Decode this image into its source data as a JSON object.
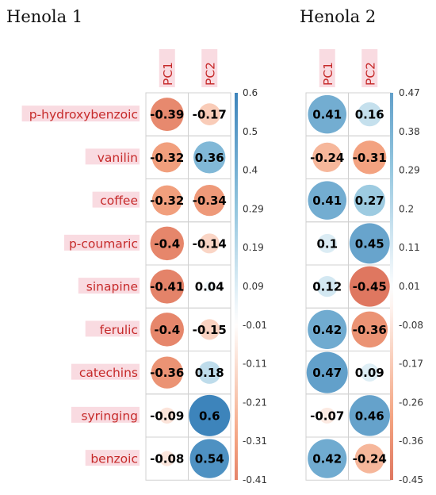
{
  "chart_data": [
    {
      "type": "heatmap",
      "title": "Henola 1",
      "columns": [
        "PC1",
        "PC2"
      ],
      "rows": [
        "p-hydroxybenzoic",
        "vanilin",
        "coffee",
        "p-coumaric",
        "sinapine",
        "ferulic",
        "catechins",
        "syringing",
        "benzoic"
      ],
      "values": [
        [
          -0.39,
          -0.17
        ],
        [
          -0.32,
          0.36
        ],
        [
          -0.32,
          -0.34
        ],
        [
          -0.4,
          -0.14
        ],
        [
          -0.41,
          0.04
        ],
        [
          -0.4,
          -0.15
        ],
        [
          -0.36,
          0.18
        ],
        [
          -0.09,
          0.6
        ],
        [
          -0.08,
          0.54
        ]
      ],
      "value_labels": [
        [
          "-0.39",
          "-0.17"
        ],
        [
          "-0.32",
          "0.36"
        ],
        [
          "-0.32",
          "-0.34"
        ],
        [
          "-0.4",
          "-0.14"
        ],
        [
          "-0.41",
          "0.04"
        ],
        [
          "-0.4",
          "-0.15"
        ],
        [
          "-0.36",
          "0.18"
        ],
        [
          "-0.09",
          "0.6"
        ],
        [
          "-0.08",
          "0.54"
        ]
      ],
      "colorbar": {
        "range": [
          -0.41,
          0.6
        ],
        "ticks": [
          "0.6",
          "0.5",
          "0.4",
          "0.29",
          "0.19",
          "0.09",
          "-0.01",
          "-0.11",
          "-0.21",
          "-0.31",
          "-0.41"
        ],
        "negative_color": "#67001f",
        "neutral_color": "#ffffff",
        "positive_color": "#053061"
      }
    },
    {
      "type": "heatmap",
      "title": "Henola 2",
      "columns": [
        "PC1",
        "PC2"
      ],
      "rows": [
        "p-hydroxybenzoic",
        "vanilin",
        "coffee",
        "p-coumaric",
        "sinapine",
        "ferulic",
        "catechins",
        "syringing",
        "benzoic"
      ],
      "values": [
        [
          0.41,
          0.16
        ],
        [
          -0.24,
          -0.31
        ],
        [
          0.41,
          0.27
        ],
        [
          0.1,
          0.45
        ],
        [
          0.12,
          -0.45
        ],
        [
          0.42,
          -0.36
        ],
        [
          0.47,
          0.09
        ],
        [
          -0.07,
          0.46
        ],
        [
          0.42,
          -0.24
        ]
      ],
      "value_labels": [
        [
          "0.41",
          "0.16"
        ],
        [
          "-0.24",
          "-0.31"
        ],
        [
          "0.41",
          "0.27"
        ],
        [
          "0.1",
          "0.45"
        ],
        [
          "0.12",
          "-0.45"
        ],
        [
          "0.42",
          "-0.36"
        ],
        [
          "0.47",
          "0.09"
        ],
        [
          "-0.07",
          "0.46"
        ],
        [
          "0.42",
          "-0.24"
        ]
      ],
      "colorbar": {
        "range": [
          -0.45,
          0.47
        ],
        "ticks": [
          "0.47",
          "0.38",
          "0.29",
          "0.2",
          "0.11",
          "0.01",
          "-0.08",
          "-0.17",
          "-0.26",
          "-0.36",
          "-0.45"
        ],
        "negative_color": "#67001f",
        "neutral_color": "#ffffff",
        "positive_color": "#053061"
      }
    }
  ]
}
